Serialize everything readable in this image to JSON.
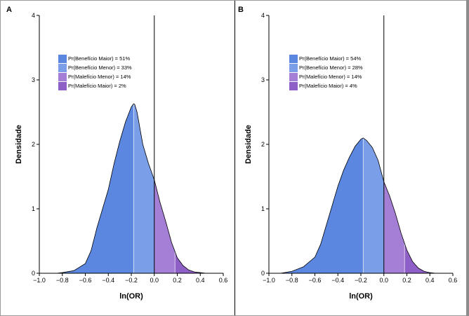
{
  "chart_data": [
    {
      "type": "area",
      "panel_label": "A",
      "xlabel": "ln(OR)",
      "ylabel": "Densidade",
      "xlim": [
        -1.0,
        0.6
      ],
      "ylim": [
        0,
        4
      ],
      "x_ticks": [
        "-1.0",
        "-0.8",
        "-0.6",
        "-0.4",
        "-0.2",
        "0.0",
        "0.2",
        "0.4",
        "0.6"
      ],
      "y_ticks": [
        "0",
        "1",
        "2",
        "3",
        "4"
      ],
      "vertical_line_x": 0.0,
      "segment_bounds": [
        -0.18,
        0.0,
        0.18
      ],
      "colors": [
        "#5b87e0",
        "#7a9fe8",
        "#a57fd6",
        "#8f5fc8"
      ],
      "legend": [
        "Pr(Benefício Maior) = 51%",
        "Pr(Benefício Menor) = 33%",
        "Pr(Malefício Menor) = 14%",
        "Pr(Malefício Maior) = 2%"
      ],
      "density_x": [
        -0.85,
        -0.8,
        -0.7,
        -0.6,
        -0.55,
        -0.5,
        -0.45,
        -0.4,
        -0.35,
        -0.3,
        -0.25,
        -0.2,
        -0.18,
        -0.17,
        -0.15,
        -0.12,
        -0.1,
        -0.05,
        0.0,
        0.05,
        0.1,
        0.15,
        0.2,
        0.25,
        0.3,
        0.35,
        0.4,
        0.45
      ],
      "density_y": [
        0.0,
        0.01,
        0.04,
        0.15,
        0.35,
        0.7,
        1.0,
        1.3,
        1.7,
        2.05,
        2.35,
        2.58,
        2.63,
        2.62,
        2.5,
        2.2,
        2.0,
        1.7,
        1.45,
        1.1,
        0.8,
        0.48,
        0.24,
        0.12,
        0.05,
        0.02,
        0.01,
        0.0
      ]
    },
    {
      "type": "area",
      "panel_label": "B",
      "xlabel": "ln(OR)",
      "ylabel": "Densidade",
      "xlim": [
        -1.0,
        0.6
      ],
      "ylim": [
        0,
        4
      ],
      "x_ticks": [
        "-1.0",
        "-0.8",
        "-0.6",
        "-0.4",
        "-0.2",
        "0.0",
        "0.2",
        "0.4",
        "0.6"
      ],
      "y_ticks": [
        "0",
        "1",
        "2",
        "3",
        "4"
      ],
      "vertical_line_x": 0.0,
      "segment_bounds": [
        -0.18,
        0.0,
        0.18
      ],
      "colors": [
        "#5b87e0",
        "#7a9fe8",
        "#a57fd6",
        "#8f5fc8"
      ],
      "legend": [
        "Pr(Benefício Maior) = 54%",
        "Pr(Benefício Menor) = 28%",
        "Pr(Malefício Menor) = 14%",
        "Pr(Malefício Maior) = 4%"
      ],
      "density_x": [
        -0.9,
        -0.8,
        -0.7,
        -0.6,
        -0.55,
        -0.5,
        -0.45,
        -0.4,
        -0.35,
        -0.3,
        -0.25,
        -0.2,
        -0.18,
        -0.15,
        -0.1,
        -0.05,
        -0.02,
        0.0,
        0.05,
        0.1,
        0.15,
        0.2,
        0.25,
        0.3,
        0.35,
        0.4,
        0.45,
        0.5
      ],
      "density_y": [
        0.0,
        0.03,
        0.1,
        0.25,
        0.45,
        0.75,
        1.05,
        1.35,
        1.6,
        1.8,
        1.97,
        2.08,
        2.1,
        2.06,
        1.95,
        1.75,
        1.55,
        1.42,
        1.2,
        0.93,
        0.62,
        0.36,
        0.18,
        0.08,
        0.03,
        0.01,
        0.0,
        0.0
      ]
    }
  ]
}
